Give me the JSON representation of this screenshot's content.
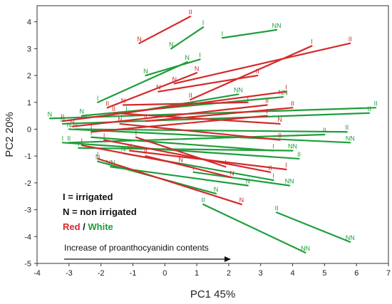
{
  "chart_data": {
    "type": "scatter",
    "xlabel": "PC1  45%",
    "ylabel": "PC2  20%",
    "xlim": [
      -4,
      7
    ],
    "ylim": [
      -5,
      4.6
    ],
    "xticks": [
      -4,
      -3,
      -2,
      -1,
      0,
      1,
      2,
      3,
      4,
      5,
      6,
      7
    ],
    "yticks": [
      -5,
      -4,
      -3,
      -2,
      -1,
      0,
      1,
      2,
      3,
      4
    ],
    "colors": {
      "red": "#d42a2a",
      "green": "#1e9e3a"
    },
    "legend": {
      "line1": "I = irrigated",
      "line2": "N = non irrigated",
      "red_word": "Red",
      "separator": " / ",
      "white_word": "White"
    },
    "annotation": {
      "text": "Increase of proanthocyanidin contents"
    },
    "series": [
      {
        "color_key": "red",
        "segments": [
          [
            [
              -0.8,
              3.2
            ],
            [
              0.8,
              4.2
            ],
            "N",
            "II"
          ],
          [
            [
              0.3,
              1.7
            ],
            [
              5.8,
              3.2
            ],
            "N",
            "II"
          ],
          [
            [
              0.8,
              1.1
            ],
            [
              4.6,
              3.1
            ],
            "II",
            "I"
          ],
          [
            [
              -0.2,
              1.4
            ],
            [
              2.9,
              2.0
            ],
            "N",
            "II"
          ],
          [
            [
              -1.8,
              0.8
            ],
            [
              1.0,
              2.1
            ],
            "II",
            "N"
          ],
          [
            [
              -3.2,
              0.3
            ],
            [
              3.8,
              1.4
            ],
            "II",
            "I"
          ],
          [
            [
              -2.9,
              0.1
            ],
            [
              3.2,
              0.9
            ],
            "N",
            "II"
          ],
          [
            [
              -1.6,
              0.6
            ],
            [
              3.6,
              0.2
            ],
            "II",
            "N"
          ],
          [
            [
              -2.3,
              -0.1
            ],
            [
              3.2,
              0.5
            ],
            "I",
            "I"
          ],
          [
            [
              -1.4,
              0.2
            ],
            [
              3.6,
              -0.4
            ],
            "N",
            "II"
          ],
          [
            [
              -1.9,
              -0.4
            ],
            [
              3.3,
              -1.6
            ],
            "I",
            "II"
          ],
          [
            [
              -1.1,
              -0.8
            ],
            [
              3.8,
              -1.5
            ],
            "N",
            "I"
          ],
          [
            [
              -0.6,
              -1.0
            ],
            [
              2.1,
              -1.8
            ],
            "II",
            "N"
          ],
          [
            [
              -2.1,
              -1.1
            ],
            [
              2.4,
              -2.8
            ],
            "I",
            "N"
          ],
          [
            [
              -0.9,
              -0.3
            ],
            [
              1.9,
              -1.4
            ],
            "I",
            "I"
          ],
          [
            [
              -1.3,
              0.9
            ],
            [
              2.6,
              1.0
            ],
            "N",
            "I"
          ],
          [
            [
              -0.6,
              0.3
            ],
            [
              4.0,
              0.8
            ],
            "II",
            "II"
          ],
          [
            [
              -2.6,
              -0.6
            ],
            [
              0.5,
              -1.3
            ],
            "I",
            "N"
          ]
        ]
      },
      {
        "color_key": "green",
        "segments": [
          [
            [
              0.2,
              3.0
            ],
            [
              1.2,
              3.8
            ],
            "N",
            "I"
          ],
          [
            [
              1.8,
              3.4
            ],
            [
              3.5,
              3.7
            ],
            "I",
            "NN"
          ],
          [
            [
              -0.6,
              2.0
            ],
            [
              1.1,
              2.6
            ],
            "N",
            "I"
          ],
          [
            [
              -2.1,
              1.0
            ],
            [
              0.7,
              2.5
            ],
            "I",
            "N"
          ],
          [
            [
              -3.6,
              0.4
            ],
            [
              6.6,
              0.8
            ],
            "N",
            "II"
          ],
          [
            [
              -3.2,
              0.2
            ],
            [
              6.4,
              0.6
            ],
            "N",
            "II"
          ],
          [
            [
              -2.6,
              0.5
            ],
            [
              3.7,
              1.2
            ],
            "N",
            "NN"
          ],
          [
            [
              -2.8,
              0.0
            ],
            [
              5.7,
              -0.1
            ],
            "N",
            "II"
          ],
          [
            [
              -3.0,
              0.0
            ],
            [
              5.8,
              -0.5
            ],
            "N",
            "NN"
          ],
          [
            [
              -3.0,
              -0.5
            ],
            [
              5.0,
              -0.2
            ],
            "II",
            "II"
          ],
          [
            [
              -2.3,
              -0.3
            ],
            [
              3.4,
              -0.8
            ],
            "I",
            "I"
          ],
          [
            [
              -2.7,
              -0.7
            ],
            [
              4.0,
              -0.8
            ],
            "I",
            "NN"
          ],
          [
            [
              -3.2,
              -0.5
            ],
            [
              4.2,
              -1.1
            ],
            "I",
            "II"
          ],
          [
            [
              -2.1,
              -1.2
            ],
            [
              1.6,
              -2.4
            ],
            "N",
            "N"
          ],
          [
            [
              -1.7,
              -1.4
            ],
            [
              2.6,
              -2.1
            ],
            "NN",
            "N"
          ],
          [
            [
              -1.3,
              -0.9
            ],
            [
              3.4,
              -1.9
            ],
            "N",
            "I"
          ],
          [
            [
              1.2,
              -2.8
            ],
            [
              4.4,
              -4.6
            ],
            "II",
            "NN"
          ],
          [
            [
              3.5,
              -3.1
            ],
            [
              5.8,
              -4.2
            ],
            "II",
            "NN"
          ],
          [
            [
              0.9,
              -1.6
            ],
            [
              3.9,
              -2.1
            ],
            "I",
            "NN"
          ],
          [
            [
              -1.2,
              0.6
            ],
            [
              2.3,
              1.3
            ],
            "I",
            "NN"
          ]
        ]
      }
    ]
  }
}
